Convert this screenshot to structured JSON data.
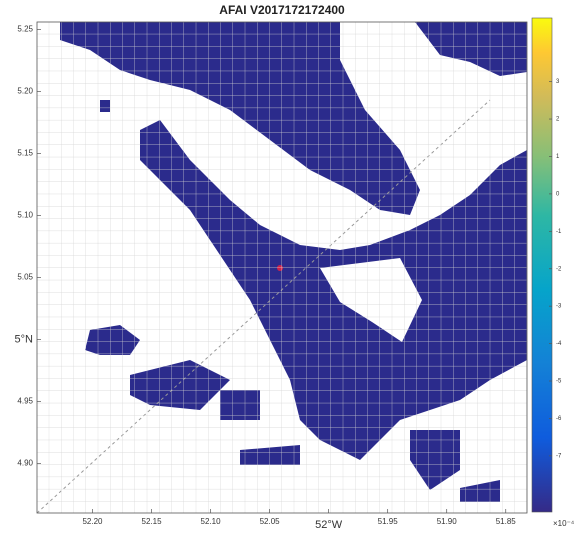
{
  "chart_data": {
    "type": "map",
    "title": "AFAI V2017172172400",
    "xlim": [
      52.247,
      51.832
    ],
    "xticks": [
      {
        "value": 52.2,
        "label": "52.20"
      },
      52.15,
      {
        "value": 52.1,
        "label": "52.10"
      },
      52.05,
      {
        "value": 52.0,
        "label": "52°W"
      },
      51.95,
      {
        "value": 51.9,
        "label": "51.90"
      },
      51.85
    ],
    "ylim": [
      4.86,
      5.256
    ],
    "yticks": [
      5.25,
      {
        "value": 5.2,
        "label": "5.20"
      },
      5.15,
      {
        "value": 5.1,
        "label": "5.10"
      },
      5.05,
      {
        "value": 5.0,
        "label": "5°N"
      },
      4.95,
      {
        "value": 4.9,
        "label": "4.90"
      }
    ],
    "grid": true,
    "colorbar": {
      "clim": [
        -8.5,
        4.7
      ],
      "ticks": [
        3,
        2,
        1,
        0,
        -1,
        -2,
        -3,
        -4,
        -5,
        -6,
        -7
      ],
      "exponent_label": "×10⁻⁴"
    }
  }
}
